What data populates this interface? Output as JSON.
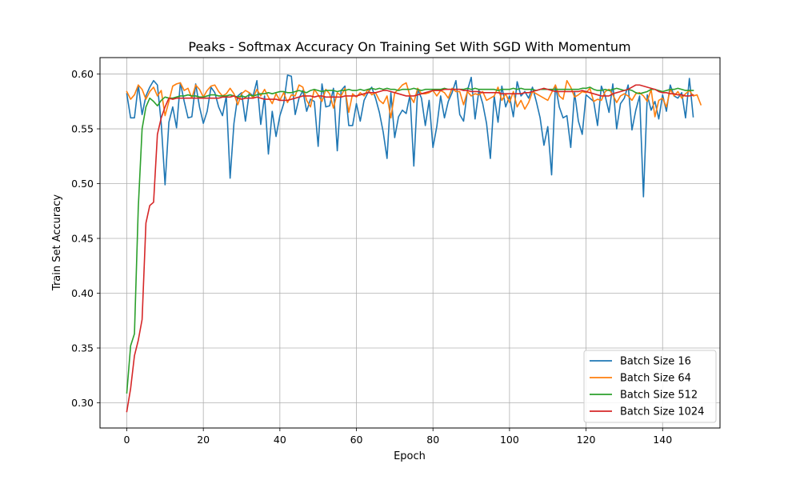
{
  "chart_data": {
    "type": "line",
    "title": "Peaks - Softmax Accuracy On Training Set With SGD With Momentum",
    "xlabel": "Epoch",
    "ylabel": "Train Set Accuracy",
    "xlim": [
      -7,
      155
    ],
    "ylim": [
      0.277,
      0.615
    ],
    "xticks": [
      0,
      20,
      40,
      60,
      80,
      100,
      120,
      140
    ],
    "yticks": [
      0.3,
      0.35,
      0.4,
      0.45,
      0.5,
      0.55,
      0.6
    ],
    "grid": true,
    "legend_position": "lower-right",
    "series": [
      {
        "name": "Batch Size 16",
        "color": "#1f77b4",
        "x_start": 0,
        "values": [
          0.582,
          0.56,
          0.56,
          0.59,
          0.563,
          0.58,
          0.588,
          0.594,
          0.59,
          0.555,
          0.499,
          0.556,
          0.57,
          0.551,
          0.592,
          0.575,
          0.56,
          0.561,
          0.591,
          0.57,
          0.555,
          0.566,
          0.588,
          0.583,
          0.57,
          0.562,
          0.58,
          0.505,
          0.555,
          0.58,
          0.583,
          0.557,
          0.583,
          0.58,
          0.594,
          0.554,
          0.58,
          0.527,
          0.566,
          0.543,
          0.562,
          0.573,
          0.599,
          0.598,
          0.563,
          0.578,
          0.585,
          0.566,
          0.577,
          0.575,
          0.534,
          0.591,
          0.57,
          0.571,
          0.587,
          0.53,
          0.585,
          0.589,
          0.553,
          0.553,
          0.573,
          0.557,
          0.576,
          0.583,
          0.588,
          0.578,
          0.565,
          0.547,
          0.523,
          0.583,
          0.542,
          0.561,
          0.567,
          0.564,
          0.581,
          0.516,
          0.586,
          0.578,
          0.553,
          0.576,
          0.533,
          0.552,
          0.58,
          0.56,
          0.575,
          0.583,
          0.594,
          0.563,
          0.557,
          0.585,
          0.597,
          0.559,
          0.585,
          0.573,
          0.555,
          0.523,
          0.58,
          0.556,
          0.589,
          0.57,
          0.58,
          0.561,
          0.593,
          0.58,
          0.584,
          0.578,
          0.588,
          0.575,
          0.56,
          0.535,
          0.552,
          0.508,
          0.59,
          0.57,
          0.56,
          0.562,
          0.533,
          0.583,
          0.557,
          0.545,
          0.581,
          0.578,
          0.575,
          0.553,
          0.589,
          0.58,
          0.565,
          0.591,
          0.55,
          0.573,
          0.578,
          0.59,
          0.549,
          0.567,
          0.58,
          0.488,
          0.581,
          0.567,
          0.575,
          0.559,
          0.581,
          0.566,
          0.59,
          0.58,
          0.578,
          0.583,
          0.56,
          0.596,
          0.561
        ]
      },
      {
        "name": "Batch Size 64",
        "color": "#ff7f0e",
        "x_start": 0,
        "values": [
          0.584,
          0.577,
          0.581,
          0.59,
          0.586,
          0.577,
          0.584,
          0.588,
          0.58,
          0.585,
          0.562,
          0.575,
          0.589,
          0.591,
          0.592,
          0.585,
          0.587,
          0.578,
          0.59,
          0.586,
          0.579,
          0.585,
          0.589,
          0.59,
          0.584,
          0.58,
          0.582,
          0.587,
          0.582,
          0.572,
          0.582,
          0.585,
          0.583,
          0.578,
          0.586,
          0.58,
          0.586,
          0.579,
          0.573,
          0.582,
          0.576,
          0.583,
          0.574,
          0.581,
          0.58,
          0.59,
          0.588,
          0.576,
          0.57,
          0.586,
          0.581,
          0.575,
          0.586,
          0.582,
          0.569,
          0.583,
          0.58,
          0.587,
          0.565,
          0.582,
          0.579,
          0.583,
          0.58,
          0.586,
          0.581,
          0.583,
          0.576,
          0.573,
          0.58,
          0.56,
          0.583,
          0.586,
          0.59,
          0.592,
          0.58,
          0.574,
          0.587,
          0.582,
          0.582,
          0.583,
          0.585,
          0.58,
          0.585,
          0.583,
          0.578,
          0.587,
          0.584,
          0.584,
          0.572,
          0.584,
          0.58,
          0.582,
          0.581,
          0.584,
          0.576,
          0.578,
          0.58,
          0.588,
          0.576,
          0.582,
          0.574,
          0.584,
          0.57,
          0.576,
          0.568,
          0.574,
          0.584,
          0.582,
          0.58,
          0.578,
          0.576,
          0.583,
          0.59,
          0.58,
          0.577,
          0.594,
          0.588,
          0.579,
          0.581,
          0.584,
          0.583,
          0.587,
          0.575,
          0.577,
          0.576,
          0.584,
          0.586,
          0.581,
          0.574,
          0.58,
          0.582,
          0.58,
          0.576,
          0.582,
          0.583,
          0.58,
          0.575,
          0.586,
          0.561,
          0.576,
          0.578,
          0.57,
          0.586,
          0.58,
          0.584,
          0.578,
          0.582,
          0.585,
          0.58,
          0.581,
          0.572
        ]
      },
      {
        "name": "Batch Size 512",
        "color": "#2ca02c",
        "x_start": 0,
        "values": [
          0.309,
          0.352,
          0.363,
          0.478,
          0.55,
          0.57,
          0.578,
          0.575,
          0.571,
          0.576,
          0.579,
          0.578,
          0.578,
          0.579,
          0.58,
          0.58,
          0.581,
          0.58,
          0.58,
          0.579,
          0.579,
          0.58,
          0.581,
          0.581,
          0.58,
          0.58,
          0.58,
          0.581,
          0.58,
          0.579,
          0.58,
          0.579,
          0.581,
          0.58,
          0.581,
          0.582,
          0.582,
          0.583,
          0.582,
          0.583,
          0.584,
          0.584,
          0.583,
          0.583,
          0.584,
          0.585,
          0.584,
          0.583,
          0.585,
          0.586,
          0.585,
          0.584,
          0.585,
          0.585,
          0.585,
          0.584,
          0.585,
          0.585,
          0.586,
          0.585,
          0.585,
          0.586,
          0.585,
          0.586,
          0.587,
          0.586,
          0.587,
          0.586,
          0.587,
          0.586,
          0.586,
          0.585,
          0.586,
          0.586,
          0.586,
          0.587,
          0.586,
          0.585,
          0.586,
          0.586,
          0.586,
          0.586,
          0.586,
          0.587,
          0.586,
          0.586,
          0.586,
          0.586,
          0.586,
          0.587,
          0.586,
          0.587,
          0.586,
          0.586,
          0.586,
          0.586,
          0.586,
          0.585,
          0.586,
          0.586,
          0.586,
          0.587,
          0.586,
          0.587,
          0.586,
          0.586,
          0.586,
          0.585,
          0.586,
          0.586,
          0.586,
          0.586,
          0.586,
          0.586,
          0.586,
          0.586,
          0.586,
          0.586,
          0.586,
          0.587,
          0.587,
          0.588,
          0.586,
          0.585,
          0.585,
          0.586,
          0.585,
          0.586,
          0.587,
          0.586,
          0.585,
          0.586,
          0.585,
          0.583,
          0.582,
          0.583,
          0.584,
          0.586,
          0.586,
          0.585,
          0.584,
          0.585,
          0.586,
          0.586,
          0.587,
          0.586,
          0.585,
          0.585,
          0.585
        ]
      },
      {
        "name": "Batch Size 1024",
        "color": "#d62728",
        "x_start": 0,
        "values": [
          0.292,
          0.313,
          0.343,
          0.357,
          0.376,
          0.464,
          0.48,
          0.483,
          0.545,
          0.56,
          0.57,
          0.578,
          0.577,
          0.578,
          0.578,
          0.578,
          0.578,
          0.578,
          0.578,
          0.578,
          0.578,
          0.578,
          0.578,
          0.578,
          0.578,
          0.579,
          0.579,
          0.579,
          0.58,
          0.578,
          0.577,
          0.578,
          0.578,
          0.578,
          0.579,
          0.578,
          0.577,
          0.577,
          0.577,
          0.577,
          0.576,
          0.576,
          0.576,
          0.577,
          0.578,
          0.579,
          0.58,
          0.58,
          0.58,
          0.579,
          0.58,
          0.58,
          0.579,
          0.579,
          0.579,
          0.579,
          0.579,
          0.58,
          0.58,
          0.58,
          0.58,
          0.581,
          0.582,
          0.583,
          0.583,
          0.583,
          0.584,
          0.585,
          0.585,
          0.584,
          0.583,
          0.582,
          0.581,
          0.58,
          0.58,
          0.58,
          0.581,
          0.582,
          0.583,
          0.584,
          0.585,
          0.585,
          0.585,
          0.586,
          0.586,
          0.586,
          0.586,
          0.586,
          0.585,
          0.585,
          0.584,
          0.584,
          0.584,
          0.583,
          0.583,
          0.583,
          0.583,
          0.583,
          0.582,
          0.582,
          0.582,
          0.582,
          0.582,
          0.582,
          0.583,
          0.583,
          0.584,
          0.585,
          0.586,
          0.587,
          0.586,
          0.585,
          0.584,
          0.584,
          0.584,
          0.584,
          0.584,
          0.584,
          0.584,
          0.585,
          0.584,
          0.583,
          0.582,
          0.581,
          0.58,
          0.58,
          0.58,
          0.582,
          0.583,
          0.584,
          0.585,
          0.586,
          0.588,
          0.59,
          0.59,
          0.589,
          0.588,
          0.587,
          0.586,
          0.584,
          0.583,
          0.583,
          0.582,
          0.582,
          0.581,
          0.581,
          0.58,
          0.58,
          0.581
        ]
      }
    ]
  }
}
